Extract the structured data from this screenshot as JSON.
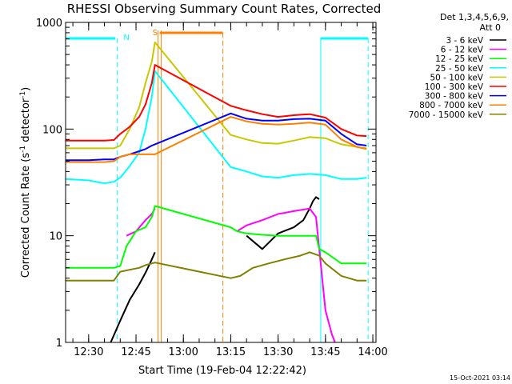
{
  "chart_data": {
    "type": "line",
    "title": "RHESSI Observing Summary Count Rates, Corrected",
    "xlabel": "Start Time (19-Feb-04 12:22:42)",
    "ylabel": "Corrected Count Rate (s",
    "ylabel_sup": "-1",
    "ylabel_mid": " detector",
    "ylabel_sup2": "-1",
    "ylabel_end": ")",
    "y_scale": "log",
    "ylim": [
      1,
      1000
    ],
    "xlim": [
      "12:22:42",
      "14:01:00"
    ],
    "x_ticks": [
      "12:30",
      "12:45",
      "13:00",
      "13:15",
      "13:30",
      "13:45",
      "14:00"
    ],
    "y_ticks": [
      "1",
      "10",
      "100",
      "1000"
    ],
    "legend_header": [
      "Det 1,3,4,5,6,9,",
      "Att 0"
    ],
    "legend_position": "right",
    "timestamp": "15-Oct-2021 03:14",
    "markers": [
      {
        "label": "N",
        "color": "#00ffff",
        "bar_start": "12:22:42",
        "bar_end": "12:39:00",
        "gap_start": "12:39:00",
        "gap_end": "13:43:30",
        "bar2_start": "13:43:30",
        "bar2_end": "13:58:30"
      },
      {
        "label": "S",
        "color": "#ff8000",
        "bar_start": "12:52:30",
        "bar_end": "13:12:30"
      }
    ],
    "series": [
      {
        "name": "3 - 6 keV",
        "color": "#000000",
        "x": [
          "12:22:42",
          "12:35",
          "12:37",
          "12:40",
          "12:43",
          "12:46",
          "12:48",
          "12:50",
          "12:51",
          "13:15",
          "13:17",
          "13:20",
          "13:25",
          "13:30",
          "13:35",
          "13:38",
          "13:40",
          "13:41",
          "13:42",
          "13:43",
          "13:44",
          "13:45"
        ],
        "values": [
          null,
          null,
          1.0,
          1.6,
          2.5,
          3.5,
          4.5,
          6,
          7,
          null,
          null,
          10,
          7.5,
          10.5,
          12,
          14,
          18,
          21,
          23,
          22,
          null,
          null
        ]
      },
      {
        "name": "6 - 12 keV",
        "color": "#ff00ff",
        "x": [
          "12:22:42",
          "12:35",
          "12:37",
          "12:40",
          "12:42",
          "12:45",
          "12:48",
          "12:50",
          "12:51",
          "13:15",
          "13:17",
          "13:20",
          "13:25",
          "13:30",
          "13:35",
          "13:40",
          "13:42",
          "13:45",
          "13:47",
          "13:48"
        ],
        "values": [
          null,
          null,
          null,
          null,
          10,
          11,
          14,
          16,
          18,
          null,
          11,
          12.5,
          14,
          16,
          17,
          18,
          15,
          2,
          1.2,
          1.0
        ]
      },
      {
        "name": "12 - 25 keV",
        "color": "#00ff00",
        "x": [
          "12:22:42",
          "12:30",
          "12:35",
          "12:38",
          "12:40",
          "12:42",
          "12:45",
          "12:48",
          "12:50",
          "12:51",
          "13:15",
          "13:17",
          "13:20",
          "13:25",
          "13:30",
          "13:35",
          "13:40",
          "13:42",
          "13:43",
          "13:45",
          "13:50",
          "13:55",
          "13:58"
        ],
        "values": [
          5,
          5,
          5,
          5,
          5.2,
          8,
          11,
          12,
          15,
          19,
          12,
          11,
          10.5,
          10.2,
          10,
          10,
          10,
          10,
          7.5,
          7,
          5.5,
          5.5,
          5.5
        ]
      },
      {
        "name": "25 - 50 keV",
        "color": "#00ffff",
        "x": [
          "12:22:42",
          "12:30",
          "12:35",
          "12:38",
          "12:40",
          "12:43",
          "12:46",
          "12:48",
          "12:50",
          "12:51",
          "13:15",
          "13:20",
          "13:25",
          "13:30",
          "13:35",
          "13:40",
          "13:45",
          "13:50",
          "13:55",
          "13:58"
        ],
        "values": [
          34,
          33,
          31,
          32,
          35,
          45,
          60,
          100,
          200,
          350,
          44,
          40,
          36,
          35,
          37,
          38,
          37,
          34,
          34,
          35
        ]
      },
      {
        "name": "50 - 100 keV",
        "color": "#c8c800",
        "x": [
          "12:22:42",
          "12:30",
          "12:35",
          "12:38",
          "12:40",
          "12:43",
          "12:46",
          "12:48",
          "12:50",
          "12:51",
          "13:15",
          "13:20",
          "13:25",
          "13:30",
          "13:35",
          "13:40",
          "13:45",
          "13:50",
          "13:55",
          "13:58"
        ],
        "values": [
          66,
          66,
          66,
          66,
          70,
          100,
          160,
          270,
          430,
          650,
          88,
          80,
          74,
          73,
          78,
          84,
          82,
          72,
          68,
          66
        ]
      },
      {
        "name": "100 - 300 keV",
        "color": "#ff0000",
        "x": [
          "12:22:42",
          "12:30",
          "12:35",
          "12:38",
          "12:40",
          "12:43",
          "12:46",
          "12:48",
          "12:50",
          "12:51",
          "13:15",
          "13:20",
          "13:25",
          "13:30",
          "13:35",
          "13:40",
          "13:45",
          "13:50",
          "13:55",
          "13:58"
        ],
        "values": [
          78,
          78,
          78,
          79,
          90,
          105,
          130,
          170,
          270,
          400,
          165,
          150,
          138,
          130,
          135,
          138,
          128,
          100,
          87,
          86
        ]
      },
      {
        "name": "300 - 800 keV",
        "color": "#0000ff",
        "x": [
          "12:22:42",
          "12:30",
          "12:35",
          "12:38",
          "12:40",
          "12:43",
          "12:46",
          "12:48",
          "12:50",
          "12:51",
          "13:15",
          "13:20",
          "13:25",
          "13:30",
          "13:35",
          "13:40",
          "13:45",
          "13:50",
          "13:55",
          "13:58"
        ],
        "values": [
          51,
          51,
          52,
          52,
          55,
          58,
          62,
          65,
          70,
          72,
          140,
          125,
          120,
          120,
          124,
          125,
          120,
          90,
          72,
          70
        ]
      },
      {
        "name": "800 - 7000 keV",
        "color": "#ff8000",
        "x": [
          "12:22:42",
          "12:30",
          "12:35",
          "12:38",
          "12:40",
          "12:43",
          "12:46",
          "12:48",
          "12:50",
          "12:51",
          "13:15",
          "13:20",
          "13:25",
          "13:30",
          "13:35",
          "13:40",
          "13:45",
          "13:50",
          "13:55",
          "13:58"
        ],
        "values": [
          49,
          49,
          49,
          50,
          55,
          58,
          58,
          58,
          58,
          58,
          130,
          118,
          112,
          110,
          112,
          115,
          110,
          80,
          68,
          65
        ]
      },
      {
        "name": "7000 - 15000 keV",
        "color": "#808000",
        "x": [
          "12:22:42",
          "12:30",
          "12:35",
          "12:38",
          "12:40",
          "12:43",
          "12:46",
          "12:48",
          "12:50",
          "12:51",
          "13:15",
          "13:18",
          "13:22",
          "13:27",
          "13:32",
          "13:37",
          "13:40",
          "13:43",
          "13:45",
          "13:50",
          "13:55",
          "13:58"
        ],
        "values": [
          3.8,
          3.8,
          3.8,
          3.8,
          4.6,
          4.8,
          5,
          5.3,
          5.5,
          5.6,
          4.0,
          4.2,
          5.0,
          5.5,
          6,
          6.5,
          7,
          6.5,
          5.5,
          4.2,
          3.8,
          3.8
        ]
      }
    ]
  }
}
